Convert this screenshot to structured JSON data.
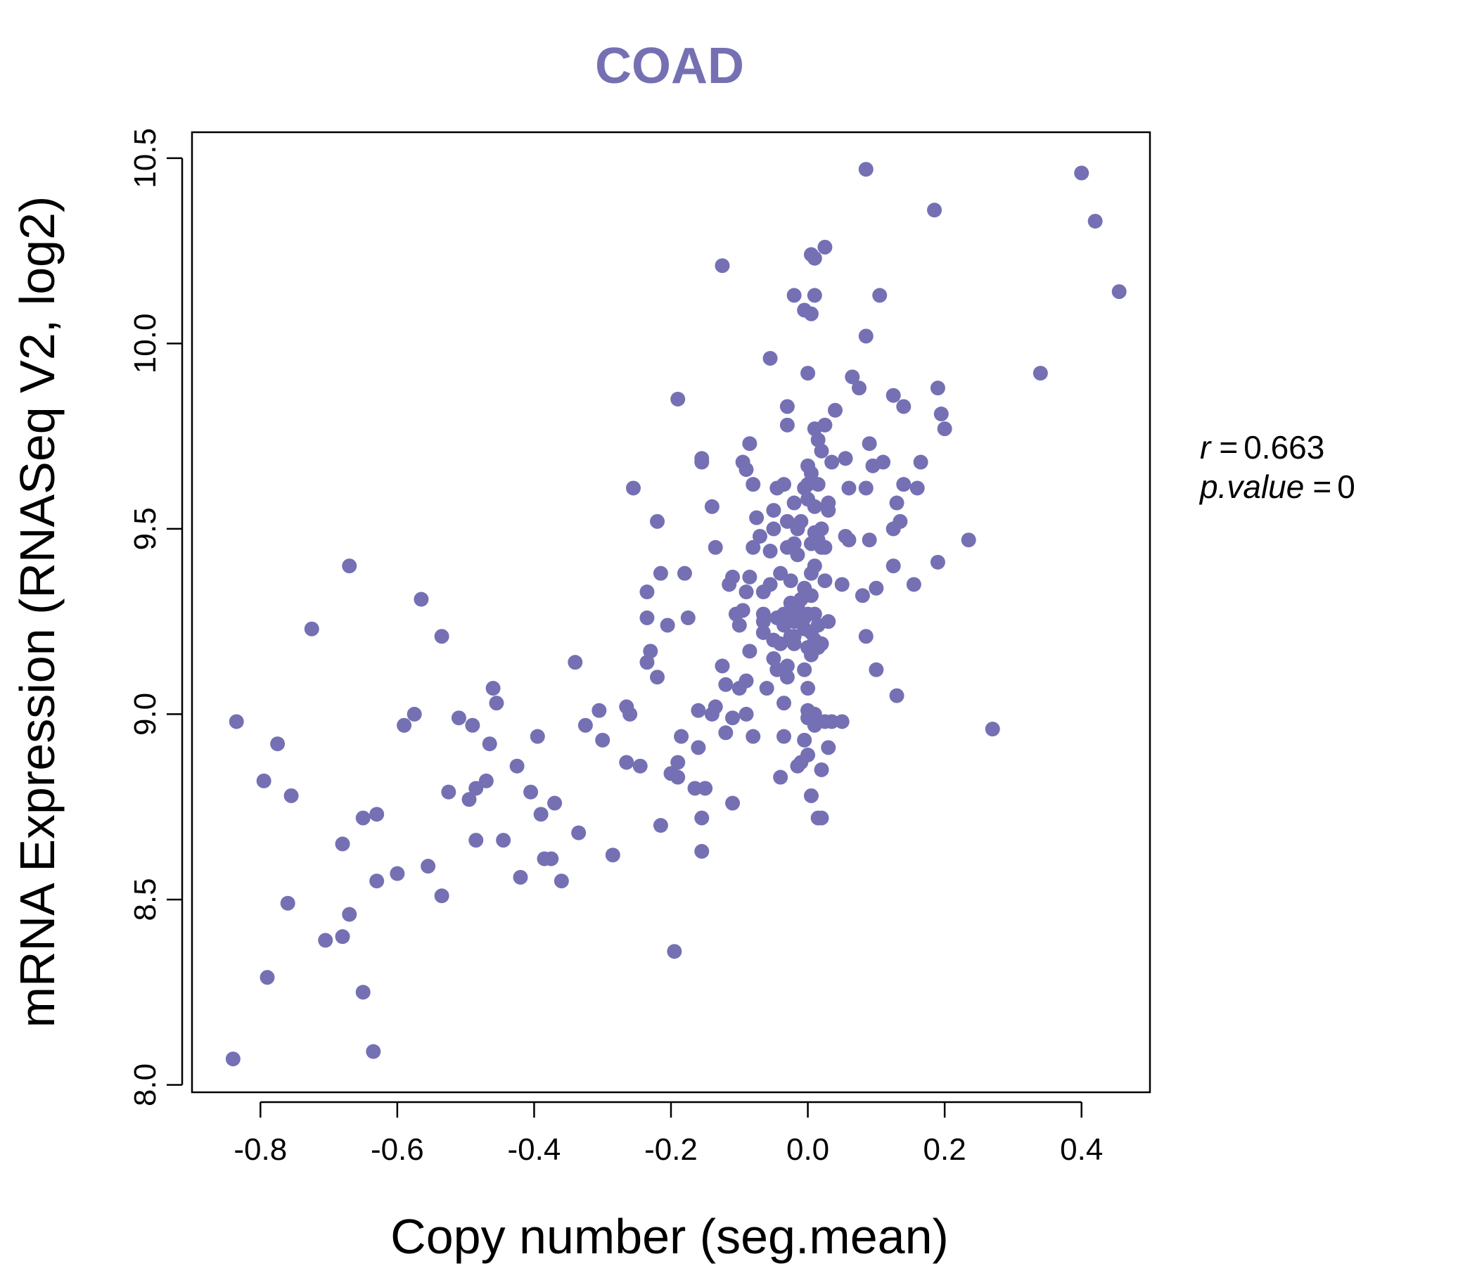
{
  "chart_data": {
    "type": "scatter",
    "title": "COAD",
    "xlabel": "Copy number (seg.mean)",
    "ylabel": "mRNA Expression (RNASeq V2, log2)",
    "xlim": [
      -0.9,
      0.5
    ],
    "ylim": [
      7.98,
      10.57
    ],
    "xticks": [
      -0.8,
      -0.6,
      -0.4,
      -0.2,
      0.0,
      0.2,
      0.4
    ],
    "xtick_labels": [
      "-0.8",
      "-0.6",
      "-0.4",
      "-0.2",
      "0.0",
      "0.2",
      "0.4"
    ],
    "yticks": [
      8.0,
      8.5,
      9.0,
      9.5,
      10.0,
      10.5
    ],
    "ytick_labels": [
      "8.0",
      "8.5",
      "9.0",
      "9.5",
      "10.0",
      "10.5"
    ],
    "colors": {
      "points": "#7570b3",
      "title": "#7570b3",
      "axis": "#000000"
    },
    "annotation": {
      "r_label": "r",
      "r_value": "0.663",
      "p_label": "p.value",
      "p_value": "0"
    },
    "points": [
      [
        -0.84,
        8.07
      ],
      [
        -0.835,
        8.98
      ],
      [
        -0.795,
        8.82
      ],
      [
        -0.79,
        8.29
      ],
      [
        -0.775,
        8.92
      ],
      [
        -0.76,
        8.49
      ],
      [
        -0.755,
        8.78
      ],
      [
        -0.725,
        9.23
      ],
      [
        -0.705,
        8.39
      ],
      [
        -0.68,
        8.65
      ],
      [
        -0.68,
        8.4
      ],
      [
        -0.67,
        8.46
      ],
      [
        -0.67,
        9.4
      ],
      [
        -0.65,
        8.25
      ],
      [
        -0.65,
        8.72
      ],
      [
        -0.635,
        8.09
      ],
      [
        -0.63,
        8.55
      ],
      [
        -0.63,
        8.73
      ],
      [
        -0.6,
        8.57
      ],
      [
        -0.59,
        8.97
      ],
      [
        -0.575,
        9.0
      ],
      [
        -0.565,
        9.31
      ],
      [
        -0.555,
        8.59
      ],
      [
        -0.535,
        9.21
      ],
      [
        -0.535,
        8.51
      ],
      [
        -0.525,
        8.79
      ],
      [
        -0.51,
        8.99
      ],
      [
        -0.495,
        8.77
      ],
      [
        -0.49,
        8.97
      ],
      [
        -0.485,
        8.8
      ],
      [
        -0.485,
        8.66
      ],
      [
        -0.47,
        8.82
      ],
      [
        -0.465,
        8.92
      ],
      [
        -0.46,
        9.07
      ],
      [
        -0.455,
        9.03
      ],
      [
        -0.445,
        8.66
      ],
      [
        -0.425,
        8.86
      ],
      [
        -0.42,
        8.56
      ],
      [
        -0.405,
        8.79
      ],
      [
        -0.395,
        8.94
      ],
      [
        -0.39,
        8.73
      ],
      [
        -0.385,
        8.61
      ],
      [
        -0.375,
        8.61
      ],
      [
        -0.37,
        8.76
      ],
      [
        -0.36,
        8.55
      ],
      [
        -0.34,
        9.14
      ],
      [
        -0.335,
        8.68
      ],
      [
        -0.325,
        8.97
      ],
      [
        -0.305,
        9.01
      ],
      [
        -0.3,
        8.93
      ],
      [
        -0.285,
        8.62
      ],
      [
        -0.265,
        9.02
      ],
      [
        -0.265,
        8.87
      ],
      [
        -0.26,
        9.0
      ],
      [
        -0.255,
        9.61
      ],
      [
        -0.245,
        8.86
      ],
      [
        -0.235,
        9.26
      ],
      [
        -0.235,
        9.33
      ],
      [
        -0.235,
        9.14
      ],
      [
        -0.23,
        9.17
      ],
      [
        -0.22,
        9.1
      ],
      [
        -0.22,
        9.52
      ],
      [
        -0.215,
        9.38
      ],
      [
        -0.215,
        8.7
      ],
      [
        -0.205,
        9.24
      ],
      [
        -0.2,
        8.84
      ],
      [
        -0.195,
        8.36
      ],
      [
        -0.19,
        8.83
      ],
      [
        -0.19,
        8.87
      ],
      [
        -0.19,
        9.85
      ],
      [
        -0.185,
        8.94
      ],
      [
        -0.18,
        9.38
      ],
      [
        -0.175,
        9.26
      ],
      [
        -0.165,
        8.8
      ],
      [
        -0.16,
        9.01
      ],
      [
        -0.16,
        8.91
      ],
      [
        -0.155,
        9.69
      ],
      [
        -0.155,
        9.68
      ],
      [
        -0.155,
        8.72
      ],
      [
        -0.155,
        8.63
      ],
      [
        -0.15,
        8.8
      ],
      [
        -0.14,
        9.56
      ],
      [
        -0.14,
        9.0
      ],
      [
        -0.135,
        9.02
      ],
      [
        -0.135,
        9.45
      ],
      [
        -0.125,
        10.21
      ],
      [
        -0.125,
        9.13
      ],
      [
        -0.12,
        8.95
      ],
      [
        -0.12,
        9.08
      ],
      [
        -0.115,
        9.35
      ],
      [
        -0.11,
        9.37
      ],
      [
        -0.11,
        8.76
      ],
      [
        -0.11,
        8.99
      ],
      [
        -0.105,
        9.27
      ],
      [
        -0.1,
        9.07
      ],
      [
        -0.1,
        9.24
      ],
      [
        -0.095,
        9.28
      ],
      [
        -0.095,
        9.68
      ],
      [
        -0.09,
        9.66
      ],
      [
        -0.09,
        9.33
      ],
      [
        -0.09,
        9.0
      ],
      [
        -0.09,
        9.09
      ],
      [
        -0.085,
        9.17
      ],
      [
        -0.085,
        9.73
      ],
      [
        -0.085,
        9.37
      ],
      [
        -0.08,
        9.62
      ],
      [
        -0.08,
        9.45
      ],
      [
        -0.08,
        8.94
      ],
      [
        -0.075,
        9.53
      ],
      [
        -0.07,
        9.48
      ],
      [
        -0.065,
        9.27
      ],
      [
        -0.065,
        9.25
      ],
      [
        -0.065,
        9.22
      ],
      [
        -0.065,
        9.33
      ],
      [
        -0.06,
        9.07
      ],
      [
        -0.055,
        9.96
      ],
      [
        -0.055,
        9.44
      ],
      [
        -0.055,
        9.35
      ],
      [
        -0.05,
        9.55
      ],
      [
        -0.05,
        9.5
      ],
      [
        -0.05,
        9.2
      ],
      [
        -0.05,
        9.15
      ],
      [
        -0.045,
        9.61
      ],
      [
        -0.045,
        9.12
      ],
      [
        -0.045,
        9.26
      ],
      [
        -0.04,
        9.19
      ],
      [
        -0.04,
        8.83
      ],
      [
        -0.04,
        9.38
      ],
      [
        -0.035,
        9.62
      ],
      [
        -0.035,
        9.03
      ],
      [
        -0.035,
        8.94
      ],
      [
        -0.035,
        9.24
      ],
      [
        -0.035,
        9.27
      ],
      [
        -0.03,
        9.83
      ],
      [
        -0.03,
        9.78
      ],
      [
        -0.03,
        9.52
      ],
      [
        -0.03,
        9.45
      ],
      [
        -0.03,
        9.13
      ],
      [
        -0.03,
        9.1
      ],
      [
        -0.025,
        9.36
      ],
      [
        -0.025,
        9.3
      ],
      [
        -0.025,
        9.21
      ],
      [
        -0.02,
        9.57
      ],
      [
        -0.02,
        9.46
      ],
      [
        -0.02,
        9.28
      ],
      [
        -0.02,
        9.25
      ],
      [
        -0.02,
        9.21
      ],
      [
        -0.02,
        9.19
      ],
      [
        -0.02,
        10.13
      ],
      [
        -0.015,
        9.5
      ],
      [
        -0.015,
        9.43
      ],
      [
        -0.015,
        9.29
      ],
      [
        -0.015,
        8.86
      ],
      [
        -0.01,
        9.52
      ],
      [
        -0.01,
        9.31
      ],
      [
        -0.01,
        9.25
      ],
      [
        -0.01,
        8.87
      ],
      [
        -0.005,
        10.09
      ],
      [
        -0.005,
        9.61
      ],
      [
        -0.005,
        9.34
      ],
      [
        -0.005,
        9.26
      ],
      [
        -0.005,
        9.23
      ],
      [
        -0.005,
        9.12
      ],
      [
        -0.005,
        8.93
      ],
      [
        0.0,
        9.92
      ],
      [
        0.0,
        9.62
      ],
      [
        0.0,
        9.58
      ],
      [
        0.0,
        9.27
      ],
      [
        0.0,
        9.18
      ],
      [
        0.0,
        9.07
      ],
      [
        0.0,
        9.01
      ],
      [
        0.0,
        8.99
      ],
      [
        0.0,
        8.89
      ],
      [
        0.0,
        9.67
      ],
      [
        0.005,
        9.65
      ],
      [
        0.005,
        9.46
      ],
      [
        0.005,
        9.38
      ],
      [
        0.005,
        9.32
      ],
      [
        0.005,
        9.22
      ],
      [
        0.005,
        9.16
      ],
      [
        0.005,
        10.24
      ],
      [
        0.005,
        10.08
      ],
      [
        0.005,
        8.78
      ],
      [
        0.01,
        9.77
      ],
      [
        0.01,
        9.56
      ],
      [
        0.01,
        9.49
      ],
      [
        0.01,
        9.4
      ],
      [
        0.01,
        9.27
      ],
      [
        0.01,
        9.2
      ],
      [
        0.01,
        9.0
      ],
      [
        0.01,
        8.97
      ],
      [
        0.01,
        10.23
      ],
      [
        0.01,
        10.13
      ],
      [
        0.015,
        9.62
      ],
      [
        0.015,
        9.47
      ],
      [
        0.015,
        9.24
      ],
      [
        0.015,
        9.18
      ],
      [
        0.015,
        8.72
      ],
      [
        0.015,
        9.74
      ],
      [
        0.02,
        9.71
      ],
      [
        0.02,
        9.5
      ],
      [
        0.02,
        9.19
      ],
      [
        0.02,
        9.45
      ],
      [
        0.02,
        8.85
      ],
      [
        0.02,
        8.72
      ],
      [
        0.025,
        9.78
      ],
      [
        0.025,
        9.45
      ],
      [
        0.025,
        9.36
      ],
      [
        0.025,
        8.98
      ],
      [
        0.025,
        10.26
      ],
      [
        0.03,
        9.57
      ],
      [
        0.03,
        9.55
      ],
      [
        0.03,
        9.25
      ],
      [
        0.03,
        8.91
      ],
      [
        0.035,
        9.68
      ],
      [
        0.035,
        8.98
      ],
      [
        0.04,
        9.82
      ],
      [
        0.05,
        9.35
      ],
      [
        0.05,
        8.98
      ],
      [
        0.055,
        9.48
      ],
      [
        0.055,
        9.69
      ],
      [
        0.06,
        9.61
      ],
      [
        0.06,
        9.47
      ],
      [
        0.065,
        9.91
      ],
      [
        0.075,
        9.88
      ],
      [
        0.08,
        9.32
      ],
      [
        0.085,
        10.47
      ],
      [
        0.085,
        9.61
      ],
      [
        0.085,
        10.02
      ],
      [
        0.085,
        9.21
      ],
      [
        0.09,
        9.47
      ],
      [
        0.09,
        9.73
      ],
      [
        0.095,
        9.67
      ],
      [
        0.1,
        9.34
      ],
      [
        0.1,
        9.12
      ],
      [
        0.105,
        10.13
      ],
      [
        0.11,
        9.68
      ],
      [
        0.125,
        9.86
      ],
      [
        0.125,
        9.5
      ],
      [
        0.125,
        9.4
      ],
      [
        0.13,
        9.57
      ],
      [
        0.13,
        9.05
      ],
      [
        0.135,
        9.52
      ],
      [
        0.14,
        9.83
      ],
      [
        0.14,
        9.62
      ],
      [
        0.155,
        9.35
      ],
      [
        0.16,
        9.61
      ],
      [
        0.165,
        9.68
      ],
      [
        0.185,
        10.36
      ],
      [
        0.19,
        9.88
      ],
      [
        0.19,
        9.41
      ],
      [
        0.195,
        9.81
      ],
      [
        0.2,
        9.77
      ],
      [
        0.235,
        9.47
      ],
      [
        0.27,
        8.96
      ],
      [
        0.34,
        9.92
      ],
      [
        0.4,
        10.46
      ],
      [
        0.42,
        10.33
      ],
      [
        0.455,
        10.14
      ]
    ]
  }
}
